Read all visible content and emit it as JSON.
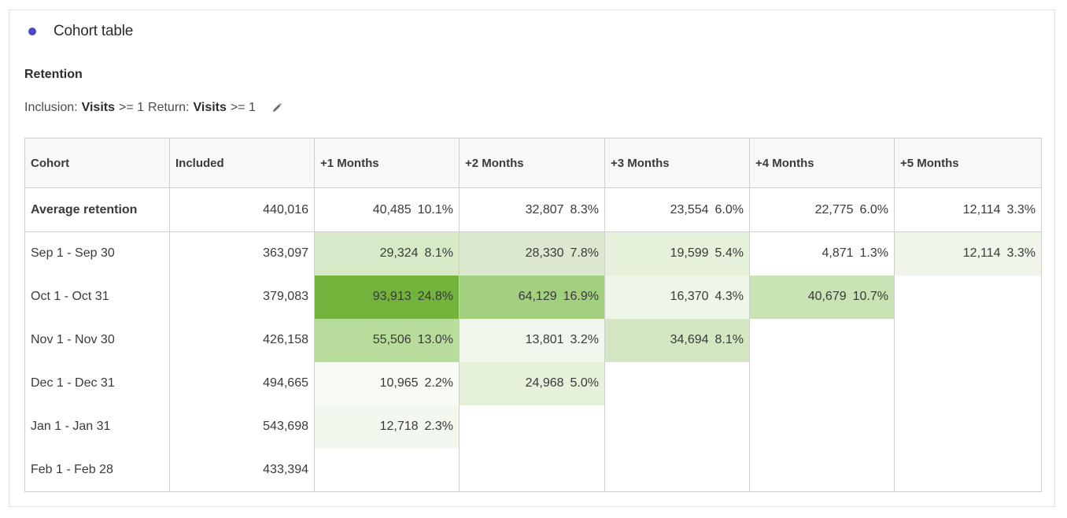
{
  "panel": {
    "title": "Cohort table",
    "accent_color": "#4f45c8",
    "subtitle": "Retention",
    "criteria": {
      "inclusion_label": "Inclusion:",
      "inclusion_metric": "Visits",
      "inclusion_condition": ">= 1",
      "return_label": "Return:",
      "return_metric": "Visits",
      "return_condition": ">= 1",
      "edit_icon": "pencil-icon"
    }
  },
  "table": {
    "columns": [
      "Cohort",
      "Included",
      "+1 Months",
      "+2 Months",
      "+3 Months",
      "+4 Months",
      "+5 Months"
    ],
    "average": {
      "label": "Average retention",
      "included": "440,016",
      "cells": [
        {
          "value": "40,485",
          "pct": "10.1%"
        },
        {
          "value": "32,807",
          "pct": "8.3%"
        },
        {
          "value": "23,554",
          "pct": "6.0%"
        },
        {
          "value": "22,775",
          "pct": "6.0%"
        },
        {
          "value": "12,114",
          "pct": "3.3%"
        }
      ]
    },
    "rows": [
      {
        "label": "Sep 1 - Sep 30",
        "included": "363,097",
        "cells": [
          {
            "value": "29,324",
            "pct": "8.1%",
            "color": "#d6eac7"
          },
          {
            "value": "28,330",
            "pct": "7.8%",
            "color": "#dbe8cf"
          },
          {
            "value": "19,599",
            "pct": "5.4%",
            "color": "#e6f1dc"
          },
          {
            "value": "4,871",
            "pct": "1.3%",
            "color": "#ffffff"
          },
          {
            "value": "12,114",
            "pct": "3.3%",
            "color": "#eff6e9"
          }
        ]
      },
      {
        "label": "Oct 1 - Oct 31",
        "included": "379,083",
        "cells": [
          {
            "value": "93,913",
            "pct": "24.8%",
            "color": "#73b33b"
          },
          {
            "value": "64,129",
            "pct": "16.9%",
            "color": "#a3d07e"
          },
          {
            "value": "16,370",
            "pct": "4.3%",
            "color": "#eef6e7"
          },
          {
            "value": "40,679",
            "pct": "10.7%",
            "color": "#c9e3b4"
          }
        ]
      },
      {
        "label": "Nov 1 - Nov 30",
        "included": "426,158",
        "cells": [
          {
            "value": "55,506",
            "pct": "13.0%",
            "color": "#b8dc9b"
          },
          {
            "value": "13,801",
            "pct": "3.2%",
            "color": "#f1f7ec"
          },
          {
            "value": "34,694",
            "pct": "8.1%",
            "color": "#d3e8c2"
          }
        ]
      },
      {
        "label": "Dec 1 - Dec 31",
        "included": "494,665",
        "cells": [
          {
            "value": "10,965",
            "pct": "2.2%",
            "color": "#f7fbf3"
          },
          {
            "value": "24,968",
            "pct": "5.0%",
            "color": "#e5f1da"
          }
        ]
      },
      {
        "label": "Jan 1 - Jan 31",
        "included": "543,698",
        "cells": [
          {
            "value": "12,718",
            "pct": "2.3%",
            "color": "#f3f8ee"
          }
        ]
      },
      {
        "label": "Feb 1 - Feb 28",
        "included": "433,394",
        "cells": []
      }
    ]
  }
}
